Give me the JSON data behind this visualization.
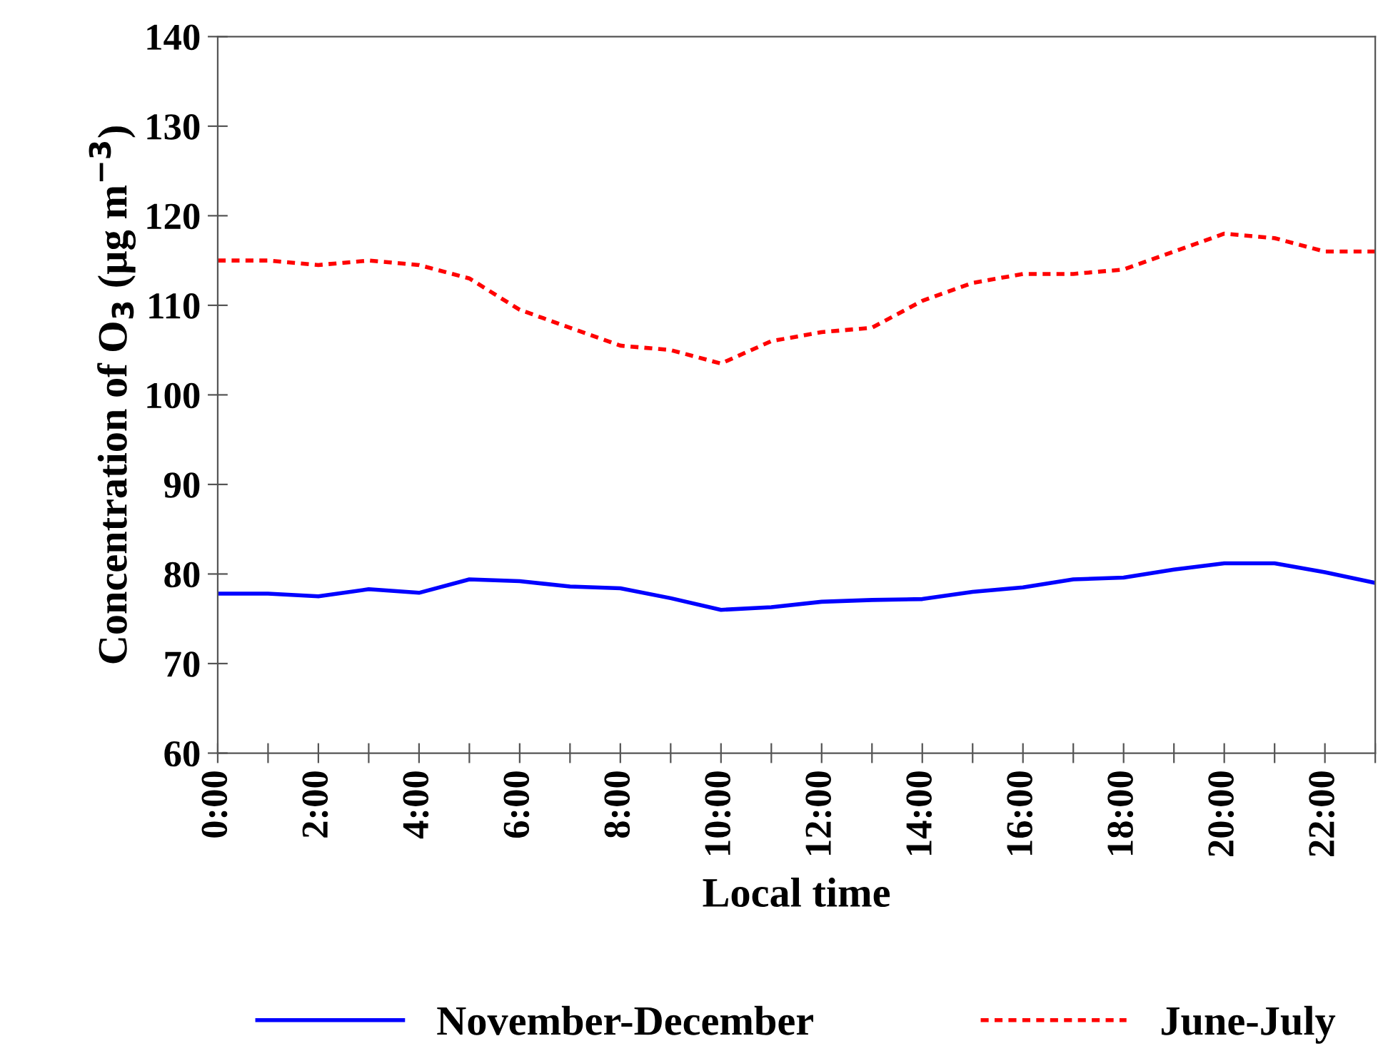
{
  "chart_data": {
    "type": "line",
    "xlabel": "Local time",
    "ylabel": "Concentration of O$_{3}$ (µg m$^{−3}$)",
    "x": [
      0,
      1,
      2,
      3,
      4,
      5,
      6,
      7,
      8,
      9,
      10,
      11,
      12,
      13,
      14,
      15,
      16,
      17,
      18,
      19,
      20,
      21,
      22,
      23
    ],
    "series": [
      {
        "name": "November-December",
        "color": "#0000ff",
        "line_style": "solid",
        "values": [
          77.8,
          77.8,
          77.5,
          78.3,
          77.9,
          79.4,
          79.2,
          78.6,
          78.4,
          77.3,
          76.0,
          76.3,
          76.9,
          77.1,
          77.2,
          78.0,
          78.5,
          79.4,
          79.6,
          80.5,
          81.2,
          81.2,
          80.2,
          79.0
        ]
      },
      {
        "name": "June-July",
        "color": "#ff0000",
        "line_style": "dotted",
        "values": [
          115,
          115,
          114.5,
          115,
          114.5,
          113,
          109.5,
          107.5,
          105.5,
          105,
          103.5,
          106,
          107,
          107.5,
          110.5,
          112.5,
          113.5,
          113.5,
          114,
          116,
          118,
          117.5,
          116,
          116
        ]
      }
    ],
    "xlim": [
      0,
      23
    ],
    "xticks": [
      {
        "value": 0,
        "label": "0:00"
      },
      {
        "value": 1,
        "label": null
      },
      {
        "value": 2,
        "label": "2:00"
      },
      {
        "value": 3,
        "label": null
      },
      {
        "value": 4,
        "label": "4:00"
      },
      {
        "value": 5,
        "label": null
      },
      {
        "value": 6,
        "label": "6:00"
      },
      {
        "value": 7,
        "label": null
      },
      {
        "value": 8,
        "label": "8:00"
      },
      {
        "value": 9,
        "label": null
      },
      {
        "value": 10,
        "label": "10:00"
      },
      {
        "value": 11,
        "label": null
      },
      {
        "value": 12,
        "label": "12:00"
      },
      {
        "value": 13,
        "label": null
      },
      {
        "value": 14,
        "label": "14:00"
      },
      {
        "value": 15,
        "label": null
      },
      {
        "value": 16,
        "label": "16:00"
      },
      {
        "value": 17,
        "label": null
      },
      {
        "value": 18,
        "label": "18:00"
      },
      {
        "value": 19,
        "label": null
      },
      {
        "value": 20,
        "label": "20:00"
      },
      {
        "value": 21,
        "label": null
      },
      {
        "value": 22,
        "label": "22:00"
      },
      {
        "value": 23,
        "label": null
      }
    ],
    "ylim": [
      60,
      140
    ],
    "yticks": [
      60,
      70,
      80,
      90,
      100,
      110,
      120,
      130,
      140
    ],
    "grid": false,
    "legend": "bottom",
    "marker": "none"
  }
}
